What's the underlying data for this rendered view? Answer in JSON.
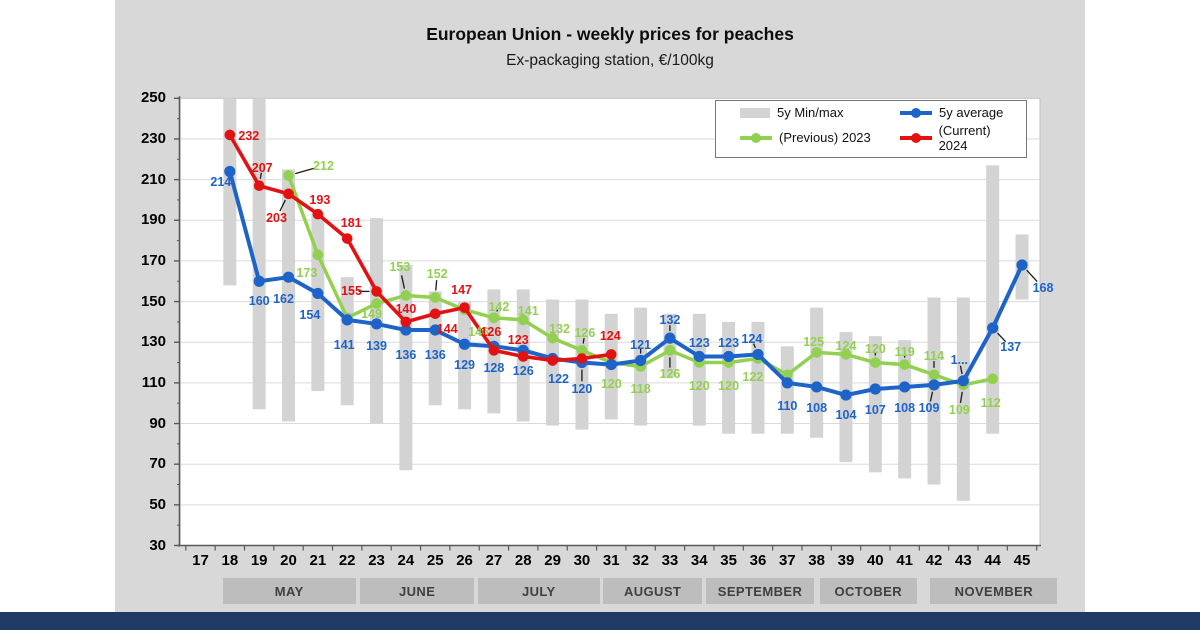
{
  "header": {
    "title": "European Union - weekly prices for peaches",
    "subtitle": "Ex-packaging station, €/100kg"
  },
  "legend": {
    "items": [
      {
        "label": "5y Min/max",
        "swatch": "bar",
        "color": "#d3d3d3"
      },
      {
        "label": "5y average",
        "swatch": "line",
        "color": "#1e63c8"
      },
      {
        "label": "(Previous) 2023",
        "swatch": "line",
        "color": "#92d050"
      },
      {
        "label": "(Current) 2024",
        "swatch": "line",
        "color": "#e31212"
      }
    ]
  },
  "colors": {
    "background": "#ffffff",
    "panel": "#d8d8d8",
    "plot_bg": "#ffffff",
    "grid": "#dadada",
    "plot_border": "#c0c0c0",
    "axis": "#595959",
    "minmax_bar": "#d3d3d3",
    "month_band": "#bdbdbd",
    "month_text": "#3f3f3f",
    "blue": "#1e63c8",
    "green": "#92d050",
    "red": "#e31212",
    "callout": "#1a1a1a",
    "footer": "#203a66"
  },
  "chart_data": {
    "type": "line",
    "title": "European Union - weekly prices for peaches",
    "subtitle": "Ex-packaging station, €/100kg",
    "unit": "€/100kg",
    "grid": true,
    "legend_position": "top-right-inside",
    "y_axis": {
      "min": 30,
      "max": 250,
      "step": 20,
      "ticks": [
        250,
        230,
        210,
        190,
        170,
        150,
        130,
        110,
        90,
        70,
        50,
        30
      ]
    },
    "x_axis": {
      "label": "week number",
      "weeks": [
        17,
        18,
        19,
        20,
        21,
        22,
        23,
        24,
        25,
        26,
        27,
        28,
        29,
        30,
        31,
        32,
        33,
        34,
        35,
        36,
        37,
        38,
        39,
        40,
        41,
        42,
        43,
        44,
        45
      ]
    },
    "months": [
      {
        "label": "MAY",
        "from": 17.75,
        "to": 22.3
      },
      {
        "label": "JUNE",
        "from": 22.45,
        "to": 26.32
      },
      {
        "label": "JULY",
        "from": 26.46,
        "to": 30.6
      },
      {
        "label": "AUGUST",
        "from": 30.72,
        "to": 34.1
      },
      {
        "label": "SEPTEMBER",
        "from": 34.22,
        "to": 37.92
      },
      {
        "label": "OCTOBER",
        "from": 38.1,
        "to": 41.42
      },
      {
        "label": "NOVEMBER",
        "from": 41.88,
        "to": 46.2
      }
    ],
    "minmax_bars": {
      "name": "5y Min/max",
      "ranges": [
        {
          "week": 18,
          "min": 158,
          "max": 252
        },
        {
          "week": 19,
          "min": 97,
          "max": 250
        },
        {
          "week": 20,
          "min": 91,
          "max": 215
        },
        {
          "week": 21,
          "min": 106,
          "max": 193
        },
        {
          "week": 22,
          "min": 99,
          "max": 162
        },
        {
          "week": 23,
          "min": 90,
          "max": 191
        },
        {
          "week": 24,
          "min": 67,
          "max": 168
        },
        {
          "week": 25,
          "min": 99,
          "max": 155
        },
        {
          "week": 26,
          "min": 97,
          "max": 150
        },
        {
          "week": 27,
          "min": 95,
          "max": 156
        },
        {
          "week": 28,
          "min": 91,
          "max": 156
        },
        {
          "week": 29,
          "min": 89,
          "max": 151
        },
        {
          "week": 30,
          "min": 87,
          "max": 151
        },
        {
          "week": 31,
          "min": 92,
          "max": 144
        },
        {
          "week": 32,
          "min": 89,
          "max": 147
        },
        {
          "week": 33,
          "min": 113,
          "max": 144
        },
        {
          "week": 34,
          "min": 89,
          "max": 144
        },
        {
          "week": 35,
          "min": 85,
          "max": 140
        },
        {
          "week": 36,
          "min": 85,
          "max": 140
        },
        {
          "week": 37,
          "min": 85,
          "max": 128
        },
        {
          "week": 38,
          "min": 83,
          "max": 147
        },
        {
          "week": 39,
          "min": 71,
          "max": 135
        },
        {
          "week": 40,
          "min": 66,
          "max": 133
        },
        {
          "week": 41,
          "min": 63,
          "max": 131
        },
        {
          "week": 42,
          "min": 60,
          "max": 152
        },
        {
          "week": 43,
          "min": 52,
          "max": 152
        },
        {
          "week": 44,
          "min": 85,
          "max": 217
        },
        {
          "week": 45,
          "min": 151,
          "max": 183
        }
      ]
    },
    "series": [
      {
        "name": "(Previous) 2023",
        "color_key": "green",
        "line_width": 3.5,
        "marker_r": 5.3,
        "points": [
          {
            "week": 20,
            "value": 212,
            "label": "212",
            "pos": "ar",
            "dx": 23,
            "dy": 3,
            "callout": true
          },
          {
            "week": 21,
            "value": 173,
            "label": "173",
            "pos": "bl",
            "dx": 1,
            "dy": 4
          },
          {
            "week": 22,
            "value": 142,
            "label": ""
          },
          {
            "week": 23,
            "value": 149,
            "label": "149",
            "pos": "b",
            "dx": -5,
            "dy": -4
          },
          {
            "week": 24,
            "value": 153,
            "label": "153",
            "pos": "a",
            "dx": -6,
            "dy": -15,
            "callout": true
          },
          {
            "week": 25,
            "value": 152,
            "label": "152",
            "pos": "a",
            "dx": 2,
            "dy": -11,
            "callout": true
          },
          {
            "week": 26,
            "value": 146,
            "label": "146",
            "pos": "br",
            "dy": 8
          },
          {
            "week": 27,
            "value": 142,
            "label": "142",
            "pos": "a",
            "dx": 5,
            "dy": 2,
            "callout": true
          },
          {
            "week": 28,
            "value": 141,
            "label": "141",
            "pos": "a",
            "dx": 5,
            "dy": 4
          },
          {
            "week": 29,
            "value": 132,
            "label": "132",
            "pos": "a",
            "dx": 7,
            "dy": 4
          },
          {
            "week": 30,
            "value": 126,
            "label": "126",
            "pos": "a",
            "dx": 3,
            "dy": -4,
            "callout": true
          },
          {
            "week": 31,
            "value": 120,
            "label": "120",
            "pos": "b",
            "dy": 7
          },
          {
            "week": 32,
            "value": 118,
            "label": "118",
            "pos": "b",
            "dy": 8
          },
          {
            "week": 33,
            "value": 126,
            "label": "126",
            "pos": "b",
            "dy": 10,
            "callout": true
          },
          {
            "week": 34,
            "value": 120,
            "label": "120",
            "pos": "b",
            "dy": 9
          },
          {
            "week": 35,
            "value": 120,
            "label": "120",
            "pos": "b",
            "dy": 9
          },
          {
            "week": 36,
            "value": 122,
            "label": "122",
            "pos": "b",
            "dx": -5,
            "dy": 5
          },
          {
            "week": 37,
            "value": 114,
            "label": ""
          },
          {
            "week": 38,
            "value": 125,
            "label": "125",
            "pos": "a",
            "dx": -3,
            "dy": 3,
            "callout": true
          },
          {
            "week": 39,
            "value": 124,
            "label": "124",
            "pos": "a",
            "dy": 5
          },
          {
            "week": 40,
            "value": 120,
            "label": "120",
            "pos": "a",
            "dy": -1,
            "callout": true
          },
          {
            "week": 41,
            "value": 119,
            "label": "119",
            "pos": "a",
            "dy": 0,
            "callout": true
          },
          {
            "week": 42,
            "value": 114,
            "label": "114",
            "pos": "a",
            "dy": -6,
            "callout": true
          },
          {
            "week": 43,
            "value": 109,
            "label": "109",
            "pos": "b",
            "dx": -4,
            "dy": 11,
            "callout": true
          },
          {
            "week": 44,
            "value": 112,
            "label": "112",
            "pos": "b",
            "dx": -2,
            "dy": 10
          }
        ]
      },
      {
        "name": "5y average",
        "color_key": "blue",
        "line_width": 4,
        "marker_r": 5.6,
        "points": [
          {
            "week": 18,
            "value": 214,
            "label": "214",
            "pos": "bl",
            "dx": 3,
            "dy": -3
          },
          {
            "week": 19,
            "value": 160,
            "label": "160",
            "pos": "b",
            "dy": 6
          },
          {
            "week": 20,
            "value": 162,
            "label": "162",
            "pos": "b",
            "dx": -5,
            "dy": 8
          },
          {
            "week": 21,
            "value": 154,
            "label": "154",
            "pos": "b",
            "dx": -8,
            "dy": 8
          },
          {
            "week": 22,
            "value": 141,
            "label": "141",
            "pos": "b",
            "dx": -3,
            "dy": 11
          },
          {
            "week": 23,
            "value": 139,
            "label": "139",
            "pos": "b",
            "dy": 8
          },
          {
            "week": 24,
            "value": 136,
            "label": "136",
            "pos": "b",
            "dy": 11
          },
          {
            "week": 25,
            "value": 136,
            "label": "136",
            "pos": "b",
            "dy": 11
          },
          {
            "week": 26,
            "value": 129,
            "label": "129",
            "pos": "b",
            "dy": 7
          },
          {
            "week": 27,
            "value": 128,
            "label": "128",
            "pos": "b",
            "dy": 8
          },
          {
            "week": 28,
            "value": 126,
            "label": "126",
            "pos": "b",
            "dy": 7
          },
          {
            "week": 29,
            "value": 122,
            "label": "122",
            "pos": "b",
            "dx": 6,
            "dy": 7
          },
          {
            "week": 30,
            "value": 120,
            "label": "120",
            "pos": "b",
            "dy": 12,
            "callout": true
          },
          {
            "week": 31,
            "value": 119,
            "label": ""
          },
          {
            "week": 32,
            "value": 121,
            "label": "121",
            "pos": "a",
            "dy": -3,
            "callout": true
          },
          {
            "week": 33,
            "value": 132,
            "label": "132",
            "pos": "a",
            "dy": -5,
            "callout": true
          },
          {
            "week": 34,
            "value": 123,
            "label": "123",
            "pos": "a"
          },
          {
            "week": 35,
            "value": 123,
            "label": "123",
            "pos": "a"
          },
          {
            "week": 36,
            "value": 124,
            "label": "124",
            "pos": "a",
            "dx": -6,
            "dy": -2,
            "callout": true
          },
          {
            "week": 37,
            "value": 110,
            "label": "110",
            "pos": "b",
            "dy": 9
          },
          {
            "week": 38,
            "value": 108,
            "label": "108",
            "pos": "b",
            "dy": 7
          },
          {
            "week": 39,
            "value": 104,
            "label": "104",
            "pos": "b",
            "dy": 6
          },
          {
            "week": 40,
            "value": 107,
            "label": "107",
            "pos": "b",
            "dy": 7
          },
          {
            "week": 41,
            "value": 108,
            "label": "108",
            "pos": "b",
            "dy": 7
          },
          {
            "week": 42,
            "value": 109,
            "label": "109",
            "pos": "b",
            "dx": -5,
            "dy": 9,
            "callout": true
          },
          {
            "week": 43,
            "value": 111,
            "label": "1...",
            "pos": "a",
            "dx": -4,
            "dy": -8,
            "callout": true
          },
          {
            "week": 44,
            "value": 137,
            "label": "137",
            "pos": "br",
            "dx": 4,
            "dy": 5,
            "callout": true
          },
          {
            "week": 45,
            "value": 168,
            "label": "168",
            "pos": "br",
            "dx": 7,
            "dy": 9,
            "callout": true
          }
        ]
      },
      {
        "name": "(Current) 2024",
        "color_key": "red",
        "line_width": 3.6,
        "marker_r": 5.3,
        "points": [
          {
            "week": 18,
            "value": 232,
            "label": "232",
            "pos": "r",
            "dx": -1,
            "dy": 1
          },
          {
            "week": 19,
            "value": 207,
            "label": "207",
            "pos": "a",
            "dx": 3,
            "dy": -5,
            "callout": true
          },
          {
            "week": 20,
            "value": 203,
            "label": "203",
            "pos": "bl",
            "dy": 10,
            "callout": true
          },
          {
            "week": 21,
            "value": 193,
            "label": "193",
            "pos": "a",
            "dx": 2,
            "dy": -1
          },
          {
            "week": 22,
            "value": 181,
            "label": "181",
            "pos": "a",
            "dx": 4,
            "dy": -3
          },
          {
            "week": 23,
            "value": 155,
            "label": "155",
            "pos": "l",
            "dx": -3,
            "callout": true
          },
          {
            "week": 24,
            "value": 140,
            "label": "140",
            "pos": "a"
          },
          {
            "week": 25,
            "value": 144,
            "label": "144",
            "pos": "br",
            "dx": -2,
            "dy": 1
          },
          {
            "week": 26,
            "value": 147,
            "label": "147",
            "pos": "a",
            "dx": -3,
            "dy": -5
          },
          {
            "week": 27,
            "value": 126,
            "label": "126",
            "pos": "a",
            "dx": -3,
            "dy": -5
          },
          {
            "week": 28,
            "value": 123,
            "label": "123",
            "pos": "a",
            "dx": -5,
            "dy": -3
          },
          {
            "week": 29,
            "value": 121,
            "label": ""
          },
          {
            "week": 30,
            "value": 122,
            "label": ""
          },
          {
            "week": 31,
            "value": 124,
            "label": "124",
            "pos": "a",
            "dx": -1,
            "dy": -5
          }
        ]
      }
    ]
  }
}
